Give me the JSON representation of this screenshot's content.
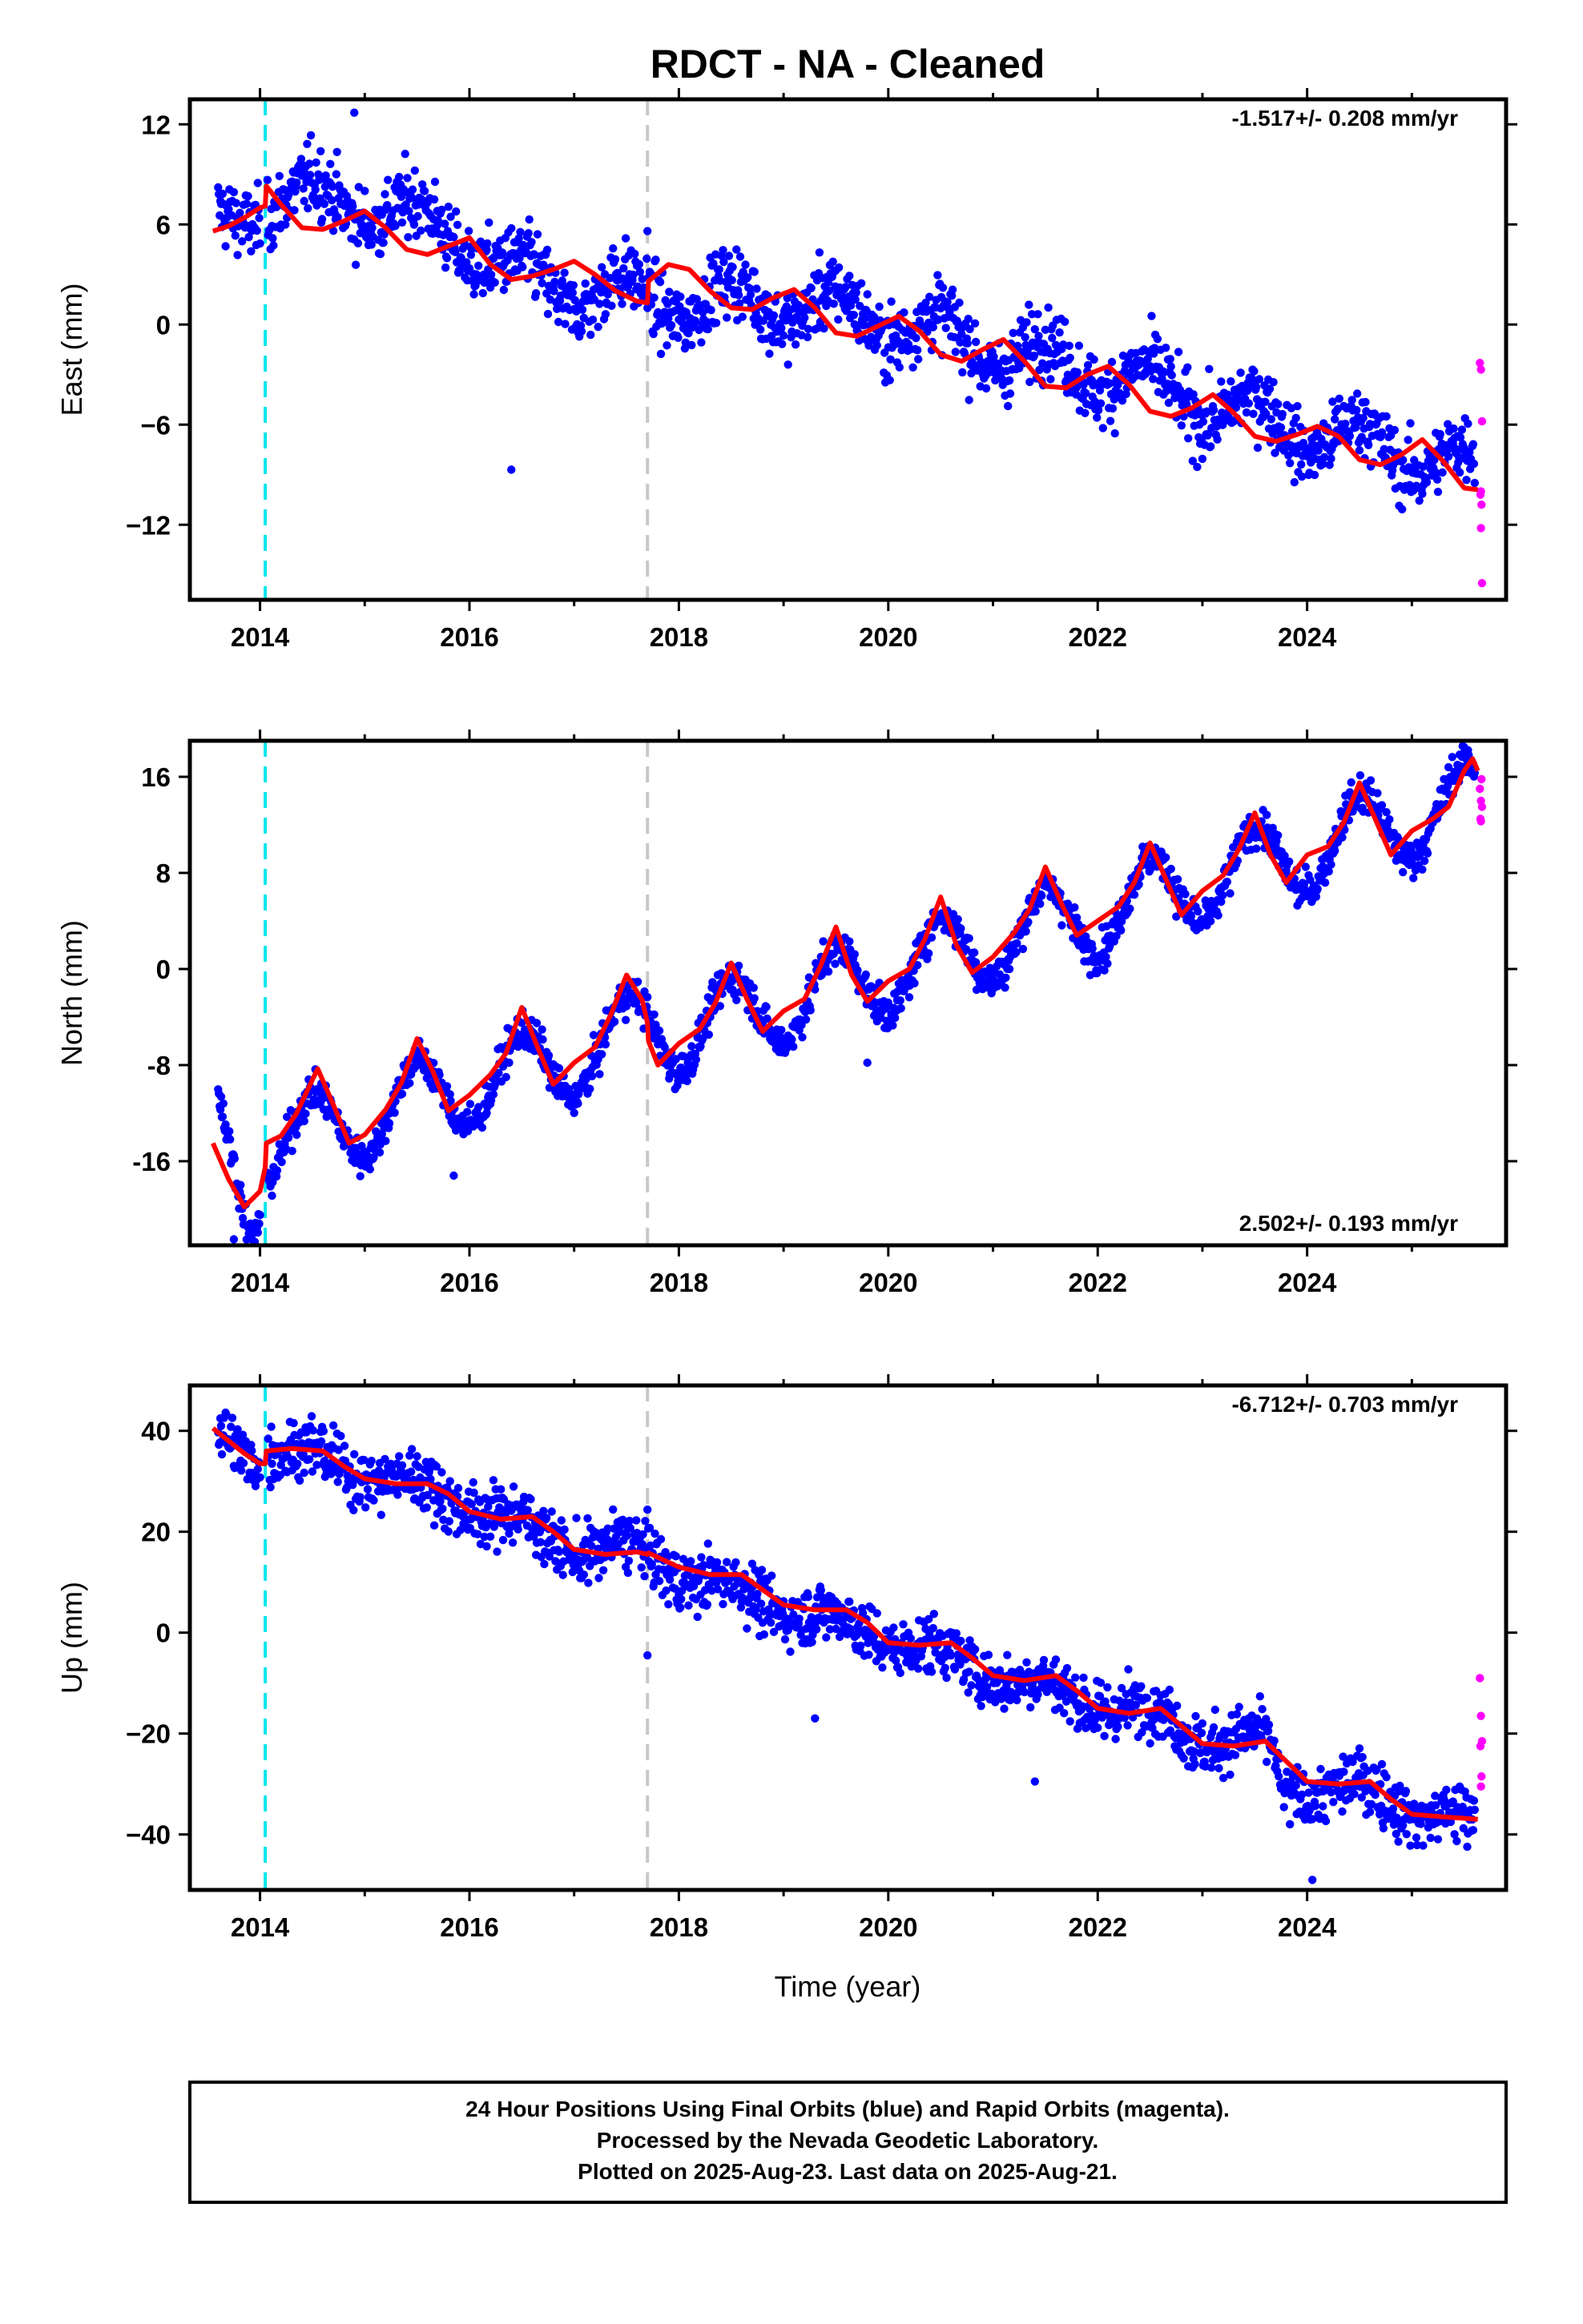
{
  "title": "RDCT  - NA - Cleaned",
  "footer": {
    "lines": [
      "24 Hour Positions Using Final Orbits (blue) and Rapid Orbits (magenta).",
      "Processed by the Nevada Geodetic Laboratory.",
      "Plotted on 2025-Aug-23. Last data on 2025-Aug-21."
    ]
  },
  "colors": {
    "final_points": "#0000ff",
    "rapid_points": "#ff00ff",
    "model": "#ff0000",
    "antenna_change": "#00e5ee",
    "event": "#c8c8c8"
  },
  "chart_data": [
    {
      "type": "scatter",
      "ylabel": "East (mm)",
      "xlabel": "",
      "xlim": [
        2013.33,
        2025.9
      ],
      "ylim": [
        -16.5,
        13.5
      ],
      "xticks": [
        2014,
        2016,
        2018,
        2020,
        2022,
        2024
      ],
      "yticks": [
        -12,
        -6,
        0,
        6,
        12
      ],
      "ytick_labels": [
        "−12",
        "−6",
        "0",
        "6",
        "12"
      ],
      "rate_text": "-1.517+/- 0.208 mm/yr",
      "rate_position": "top-right",
      "vlines": [
        {
          "x": 2014.05,
          "style": "cyan-dashed"
        },
        {
          "x": 2017.7,
          "style": "gray-dashed"
        }
      ],
      "model": {
        "name": "model",
        "x": [
          2013.55,
          2013.7,
          2013.85,
          2014.0,
          2014.05,
          2014.06,
          2014.2,
          2014.4,
          2014.6,
          2014.8,
          2015.0,
          2015.2,
          2015.4,
          2015.6,
          2015.8,
          2016.0,
          2016.2,
          2016.4,
          2016.6,
          2016.8,
          2017.0,
          2017.2,
          2017.4,
          2017.6,
          2017.7,
          2017.71,
          2017.9,
          2018.1,
          2018.3,
          2018.5,
          2018.7,
          2018.9,
          2019.1,
          2019.3,
          2019.5,
          2019.7,
          2019.9,
          2020.1,
          2020.3,
          2020.5,
          2020.7,
          2020.9,
          2021.1,
          2021.3,
          2021.5,
          2021.7,
          2021.9,
          2022.1,
          2022.3,
          2022.5,
          2022.7,
          2022.9,
          2023.1,
          2023.3,
          2023.5,
          2023.7,
          2023.9,
          2024.1,
          2024.3,
          2024.5,
          2024.7,
          2024.9,
          2025.1,
          2025.3,
          2025.5,
          2025.63
        ],
        "y": [
          5.6,
          5.9,
          6.4,
          7.0,
          7.1,
          8.3,
          7.2,
          5.8,
          5.7,
          6.2,
          6.8,
          5.8,
          4.5,
          4.2,
          4.7,
          5.2,
          3.6,
          2.7,
          2.9,
          3.3,
          3.8,
          3.0,
          2.0,
          1.4,
          1.3,
          2.6,
          3.6,
          3.3,
          2.0,
          1.0,
          0.9,
          1.6,
          2.1,
          1.0,
          -0.5,
          -0.7,
          -0.1,
          0.5,
          -0.4,
          -1.8,
          -2.2,
          -1.5,
          -0.9,
          -2.2,
          -3.7,
          -3.8,
          -3.0,
          -2.5,
          -3.6,
          -5.2,
          -5.5,
          -5.0,
          -4.2,
          -5.3,
          -6.7,
          -7.0,
          -6.6,
          -6.1,
          -6.7,
          -8.1,
          -8.4,
          -7.8,
          -6.9,
          -8.2,
          -9.8,
          -9.9
        ]
      },
      "series": [
        {
          "name": "final",
          "trend": [
            [
              2013.6,
              5.8
            ],
            [
              2014.06,
              7.6
            ],
            [
              2015.0,
              7.3
            ],
            [
              2016.0,
              5.0
            ],
            [
              2016.4,
              2.8
            ],
            [
              2017.7,
              1.5
            ],
            [
              2019.0,
              1.3
            ],
            [
              2020.0,
              0.3
            ],
            [
              2021.0,
              -1.5
            ],
            [
              2022.0,
              -2.8
            ],
            [
              2023.0,
              -4.6
            ],
            [
              2024.0,
              -6.4
            ],
            [
              2025.6,
              -8.6
            ]
          ],
          "amplitude": 1.3,
          "scatter": 1.6,
          "spikes": [
            [
              2016.4,
              -8.7
            ],
            [
              2017.7,
              5.6
            ],
            [
              2014.9,
              12.7
            ]
          ]
        },
        {
          "name": "rapid",
          "x": [
            2025.65,
            2025.66,
            2025.67,
            2025.655,
            2025.665,
            2025.66,
            2025.67,
            2025.66
          ],
          "y": [
            -2.3,
            -2.7,
            -5.8,
            -10.2,
            -10.8,
            -12.2,
            -15.5,
            -10.0
          ]
        }
      ]
    },
    {
      "type": "scatter",
      "ylabel": "North (mm)",
      "xlabel": "",
      "xlim": [
        2013.33,
        2025.9
      ],
      "ylim": [
        -23,
        19
      ],
      "xticks": [
        2014,
        2016,
        2018,
        2020,
        2022,
        2024
      ],
      "yticks": [
        -16,
        -8,
        0,
        8,
        16
      ],
      "ytick_labels": [
        "-16",
        "-8",
        "0",
        "8",
        "16"
      ],
      "rate_text": "2.502+/- 0.193 mm/yr",
      "rate_position": "bottom-right",
      "vlines": [
        {
          "x": 2014.05,
          "style": "cyan-dashed"
        },
        {
          "x": 2017.7,
          "style": "gray-dashed"
        }
      ],
      "model": {
        "name": "model",
        "x": [
          2013.55,
          2013.7,
          2013.85,
          2014.0,
          2014.05,
          2014.06,
          2014.2,
          2014.35,
          2014.55,
          2014.7,
          2014.85,
          2015.0,
          2015.2,
          2015.35,
          2015.5,
          2015.65,
          2015.8,
          2016.0,
          2016.2,
          2016.35,
          2016.5,
          2016.65,
          2016.8,
          2017.0,
          2017.2,
          2017.35,
          2017.5,
          2017.65,
          2017.7,
          2017.71,
          2017.8,
          2018.0,
          2018.2,
          2018.35,
          2018.5,
          2018.65,
          2018.8,
          2019.0,
          2019.2,
          2019.35,
          2019.5,
          2019.65,
          2019.8,
          2020.0,
          2020.2,
          2020.35,
          2020.5,
          2020.65,
          2020.8,
          2021.0,
          2021.2,
          2021.35,
          2021.5,
          2021.65,
          2021.8,
          2022.0,
          2022.2,
          2022.35,
          2022.5,
          2022.65,
          2022.8,
          2023.0,
          2023.2,
          2023.35,
          2023.5,
          2023.65,
          2023.8,
          2024.0,
          2024.2,
          2024.35,
          2024.5,
          2024.65,
          2024.8,
          2025.0,
          2025.2,
          2025.35,
          2025.5,
          2025.58,
          2025.63
        ],
        "y": [
          -14.5,
          -17.5,
          -19.8,
          -18.5,
          -16.5,
          -14.5,
          -13.9,
          -12.0,
          -8.3,
          -11.3,
          -14.5,
          -13.8,
          -11.7,
          -9.5,
          -5.8,
          -8.5,
          -11.8,
          -10.5,
          -8.8,
          -7.0,
          -3.2,
          -6.5,
          -9.6,
          -7.8,
          -6.5,
          -3.8,
          -0.5,
          -2.6,
          -4.5,
          -6.0,
          -8.0,
          -6.2,
          -5.0,
          -2.8,
          0.5,
          -2.5,
          -5.2,
          -3.5,
          -2.5,
          0.2,
          3.5,
          -0.5,
          -2.7,
          -1.0,
          0.0,
          2.5,
          6.0,
          2.0,
          -0.3,
          1.0,
          3.0,
          5.0,
          8.5,
          5.5,
          2.8,
          4.0,
          5.2,
          7.2,
          10.5,
          7.5,
          4.5,
          6.5,
          7.8,
          10.0,
          13.0,
          9.5,
          7.2,
          9.5,
          10.2,
          12.2,
          15.5,
          12.5,
          9.5,
          11.5,
          12.5,
          13.5,
          16.5,
          17.5,
          16.5
        ]
      },
      "series": [
        {
          "name": "final",
          "trend": [
            [
              2013.6,
              -13
            ],
            [
              2013.9,
              -19.5
            ],
            [
              2014.05,
              -17
            ],
            [
              2014.06,
              -15
            ],
            [
              2015.0,
              -12.3
            ],
            [
              2016.0,
              -9.7
            ],
            [
              2017.0,
              -7.4
            ],
            [
              2017.7,
              -4.7
            ],
            [
              2018.0,
              -5.3
            ],
            [
              2019.0,
              -2.8
            ],
            [
              2020.0,
              -0.3
            ],
            [
              2021.0,
              2.3
            ],
            [
              2022.0,
              4.6
            ],
            [
              2023.0,
              7.2
            ],
            [
              2024.0,
              9.7
            ],
            [
              2025.6,
              14.2
            ]
          ],
          "amplitude": 3.3,
          "scatter": 1.2,
          "spikes": [
            [
              2015.85,
              -17.2
            ],
            [
              2019.8,
              -7.8
            ],
            [
              2013.75,
              -22.5
            ]
          ]
        },
        {
          "name": "rapid",
          "x": [
            2025.65,
            2025.66,
            2025.67,
            2025.655,
            2025.665,
            2025.66
          ],
          "y": [
            15.0,
            14.0,
            13.5,
            12.5,
            15.8,
            12.3
          ]
        }
      ]
    },
    {
      "type": "scatter",
      "ylabel": "Up (mm)",
      "xlabel": "Time (year)",
      "xlim": [
        2013.33,
        2025.9
      ],
      "ylim": [
        -51,
        49
      ],
      "xticks": [
        2014,
        2016,
        2018,
        2020,
        2022,
        2024
      ],
      "yticks": [
        -40,
        -20,
        0,
        20,
        40
      ],
      "ytick_labels": [
        "−40",
        "−20",
        "0",
        "20",
        "40"
      ],
      "rate_text": "-6.712+/- 0.703 mm/yr",
      "rate_position": "top-right",
      "vlines": [
        {
          "x": 2014.05,
          "style": "cyan-dashed"
        },
        {
          "x": 2017.7,
          "style": "gray-dashed"
        }
      ],
      "model": {
        "name": "model",
        "x": [
          2013.55,
          2013.7,
          2013.85,
          2014.0,
          2014.05,
          2014.06,
          2014.3,
          2014.6,
          2014.8,
          2015.0,
          2015.3,
          2015.6,
          2015.8,
          2016.0,
          2016.3,
          2016.6,
          2016.8,
          2017.0,
          2017.3,
          2017.6,
          2017.7,
          2017.71,
          2018.0,
          2018.3,
          2018.6,
          2018.8,
          2019.0,
          2019.3,
          2019.6,
          2019.8,
          2020.0,
          2020.3,
          2020.6,
          2020.8,
          2021.0,
          2021.3,
          2021.6,
          2021.8,
          2022.0,
          2022.3,
          2022.6,
          2022.8,
          2023.0,
          2023.3,
          2023.6,
          2023.8,
          2024.0,
          2024.3,
          2024.6,
          2024.8,
          2025.0,
          2025.3,
          2025.63
        ],
        "y": [
          40.5,
          38.0,
          35.5,
          33.5,
          33.5,
          36.0,
          36.5,
          36.0,
          33.0,
          30.5,
          29.5,
          29.5,
          27.5,
          24.0,
          22.5,
          23.0,
          20.0,
          16.5,
          15.5,
          16.0,
          15.5,
          15.8,
          13.0,
          11.5,
          11.5,
          8.5,
          5.5,
          4.5,
          4.5,
          2.0,
          -2.0,
          -2.5,
          -2.0,
          -5.0,
          -8.5,
          -9.5,
          -8.5,
          -11.5,
          -15.0,
          -16.0,
          -15.0,
          -18.5,
          -22.0,
          -22.5,
          -21.5,
          -25.5,
          -29.5,
          -30.0,
          -29.5,
          -33.0,
          -36.0,
          -36.5,
          -37.0
        ]
      },
      "series": [
        {
          "name": "final",
          "trend": [
            [
              2013.6,
              39
            ],
            [
              2014.05,
              34
            ],
            [
              2014.06,
              37
            ],
            [
              2015.0,
              32
            ],
            [
              2016.0,
              25.5
            ],
            [
              2017.0,
              17
            ],
            [
              2017.7,
              16
            ],
            [
              2018.0,
              12
            ],
            [
              2019.0,
              5
            ],
            [
              2020.0,
              -1
            ],
            [
              2021.0,
              -8
            ],
            [
              2022.0,
              -14
            ],
            [
              2022.6,
              -16.5
            ],
            [
              2023.0,
              -21
            ],
            [
              2023.65,
              -22
            ],
            [
              2023.75,
              -31
            ],
            [
              2024.5,
              -31
            ],
            [
              2025.0,
              -34.5
            ],
            [
              2025.6,
              -38
            ]
          ],
          "amplitude": 2.0,
          "scatter": 4.5,
          "spikes": [
            [
              2021.4,
              -29.5
            ],
            [
              2017.7,
              -4.5
            ],
            [
              2019.3,
              -17.0
            ],
            [
              2024.05,
              -49.0
            ]
          ]
        },
        {
          "name": "rapid",
          "x": [
            2025.65,
            2025.66,
            2025.67,
            2025.655,
            2025.665,
            2025.66
          ],
          "y": [
            -9.0,
            -16.5,
            -21.5,
            -22.5,
            -28.5,
            -30.5
          ]
        }
      ]
    }
  ]
}
